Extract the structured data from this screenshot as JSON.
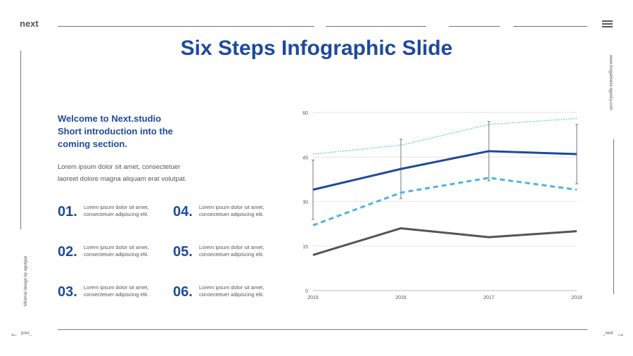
{
  "header": {
    "brand": "next",
    "menu_icon": "hamburger-menu-icon"
  },
  "title": "Six Steps Infographic Slide",
  "side": {
    "left_text": "Minimal design by egotype",
    "right_text": "www.megabrand-agency.com"
  },
  "intro": {
    "lines": [
      "Welcome to Next.studio",
      "Short introduction into the",
      "coming section."
    ],
    "desc_lines": [
      "Lorem ipsum dolor sit amet, consectetuer",
      "laoreet dolore magna aliquam erat volutpat."
    ]
  },
  "steps": [
    {
      "num": "01.",
      "line1": "Lorem ipsum dolor sit amet,",
      "line2": "consectetuer adipiscing elit."
    },
    {
      "num": "02.",
      "line1": "Lorem ipsum dolor sit amet,",
      "line2": "consectetuer adipiscing elit."
    },
    {
      "num": "03.",
      "line1": "Lorem ipsum dolor sit amet,",
      "line2": "consectetuer adipiscing elit."
    },
    {
      "num": "04.",
      "line1": "Lorem ipsum dolor sit amet,",
      "line2": "consectetuer adipiscing elit."
    },
    {
      "num": "05.",
      "line1": "Lorem ipsum dolor sit amet,",
      "line2": "consectetuer adipiscing elit."
    },
    {
      "num": "06.",
      "line1": "Lorem ipsum dolor sit amet,",
      "line2": "consectetuer adipiscing elit."
    }
  ],
  "footer": {
    "prev": "prev_",
    "next": "_next",
    "prev_icon": "arrow-left-icon",
    "next_icon": "arrow-right-icon"
  },
  "chart_data": {
    "type": "line",
    "x": [
      "2015",
      "2016",
      "2017",
      "2018"
    ],
    "ylim": [
      0,
      60
    ],
    "yticks": [
      0,
      15,
      30,
      45,
      60
    ],
    "grid": true,
    "series": [
      {
        "values": [
          46,
          49,
          56,
          58
        ],
        "color": "#4fb4e0",
        "style": "dotted"
      },
      {
        "values": [
          34,
          41,
          47,
          46
        ],
        "color": "#1e4a9c",
        "style": "solid",
        "error": [
          10,
          10,
          10,
          10
        ]
      },
      {
        "values": [
          22,
          33,
          38,
          34
        ],
        "color": "#4fb4e0",
        "style": "dashed"
      },
      {
        "values": [
          12,
          21,
          18,
          20
        ],
        "color": "#555555",
        "style": "solid"
      }
    ]
  }
}
